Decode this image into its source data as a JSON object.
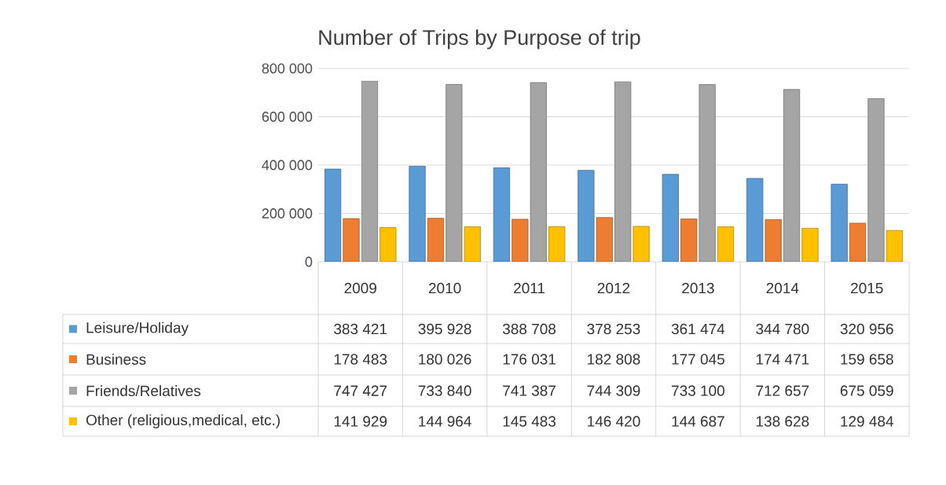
{
  "chart_data": {
    "type": "bar",
    "title": "Number of Trips by Purpose of trip",
    "categories": [
      "2009",
      "2010",
      "2011",
      "2012",
      "2013",
      "2014",
      "2015"
    ],
    "series": [
      {
        "name": "Leisure/Holiday",
        "color": "#5b9bd5",
        "values": [
          383421,
          395928,
          388708,
          378253,
          361474,
          344780,
          320956
        ]
      },
      {
        "name": "Business",
        "color": "#ed7d31",
        "values": [
          178483,
          180026,
          176031,
          182808,
          177045,
          174471,
          159658
        ]
      },
      {
        "name": "Friends/Relatives",
        "color": "#a5a5a5",
        "values": [
          747427,
          733840,
          741387,
          744309,
          733100,
          712657,
          675059
        ]
      },
      {
        "name": "Other (religious,medical, etc.)",
        "color": "#ffc000",
        "values": [
          141929,
          144964,
          145483,
          146420,
          144687,
          138628,
          129484
        ]
      }
    ],
    "ylim": [
      0,
      800000
    ],
    "yticks": [
      0,
      {
        "value": 200000,
        "label": "200 000"
      },
      {
        "value": 400000,
        "label": "400 000"
      },
      {
        "value": 600000,
        "label": "600 000"
      },
      {
        "value": 800000,
        "label": "800 000"
      }
    ],
    "grid": "y",
    "legend": "bottom",
    "data_labels": true
  }
}
